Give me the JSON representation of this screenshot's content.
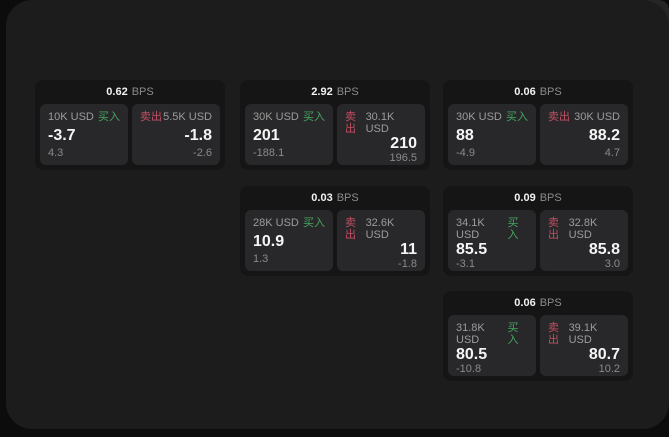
{
  "labels": {
    "bps_unit": "BPS",
    "buy": "买入",
    "sell": "卖出"
  },
  "colors": {
    "backdrop": "#0c0c0c",
    "window_bg": "#1c1c1d",
    "card_bg": "#151516",
    "tile_bg": "#28282a",
    "buy_accent": "#46a55f",
    "sell_accent": "#c24e61"
  },
  "cards": [
    {
      "bps": "0.62",
      "buy": {
        "size": "10K USD",
        "price": "-3.7",
        "change": "4.3"
      },
      "sell": {
        "size": "5.5K USD",
        "price": "-1.8",
        "change": "-2.6"
      }
    },
    {
      "bps": "2.92",
      "buy": {
        "size": "30K USD",
        "price": "201",
        "change": "-188.1"
      },
      "sell": {
        "size": "30.1K USD",
        "price": "210",
        "change": "196.5"
      }
    },
    {
      "bps": "0.06",
      "buy": {
        "size": "30K USD",
        "price": "88",
        "change": "-4.9"
      },
      "sell": {
        "size": "30K USD",
        "price": "88.2",
        "change": "4.7"
      }
    },
    {
      "bps": "0.03",
      "buy": {
        "size": "28K USD",
        "price": "10.9",
        "change": "1.3"
      },
      "sell": {
        "size": "32.6K USD",
        "price": "11",
        "change": "-1.8"
      }
    },
    {
      "bps": "0.09",
      "buy": {
        "size": "34.1K USD",
        "price": "85.5",
        "change": "-3.1"
      },
      "sell": {
        "size": "32.8K USD",
        "price": "85.8",
        "change": "3.0"
      }
    },
    {
      "bps": "0.06",
      "buy": {
        "size": "31.8K USD",
        "price": "80.5",
        "change": "-10.8"
      },
      "sell": {
        "size": "39.1K USD",
        "price": "80.7",
        "change": "10.2"
      }
    }
  ]
}
